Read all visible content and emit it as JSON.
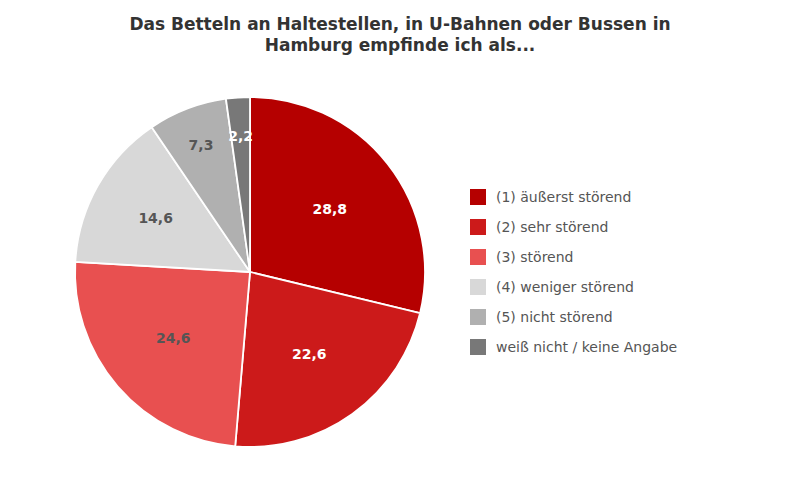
{
  "chart_data": {
    "type": "pie",
    "title": "Das Betteln an Haltestellen, in U-Bahnen oder Bussen in\nHamburg empfinde ich als...",
    "categories": [
      "(1) äußerst störend",
      "(2) sehr störend",
      "(3) störend",
      "(4) weniger störend",
      "(5) nicht störend",
      "weiß nicht / keine Angabe"
    ],
    "values": [
      28.8,
      22.6,
      24.6,
      14.6,
      7.3,
      2.2
    ],
    "value_labels": [
      "28,8",
      "22,6",
      "24,6",
      "14,6",
      "7,3",
      "2,2"
    ],
    "colors": [
      "#b50000",
      "#cc1a1a",
      "#e85050",
      "#d8d8d8",
      "#b0b0b0",
      "#787878"
    ],
    "data_labels": true,
    "legend": "right"
  }
}
